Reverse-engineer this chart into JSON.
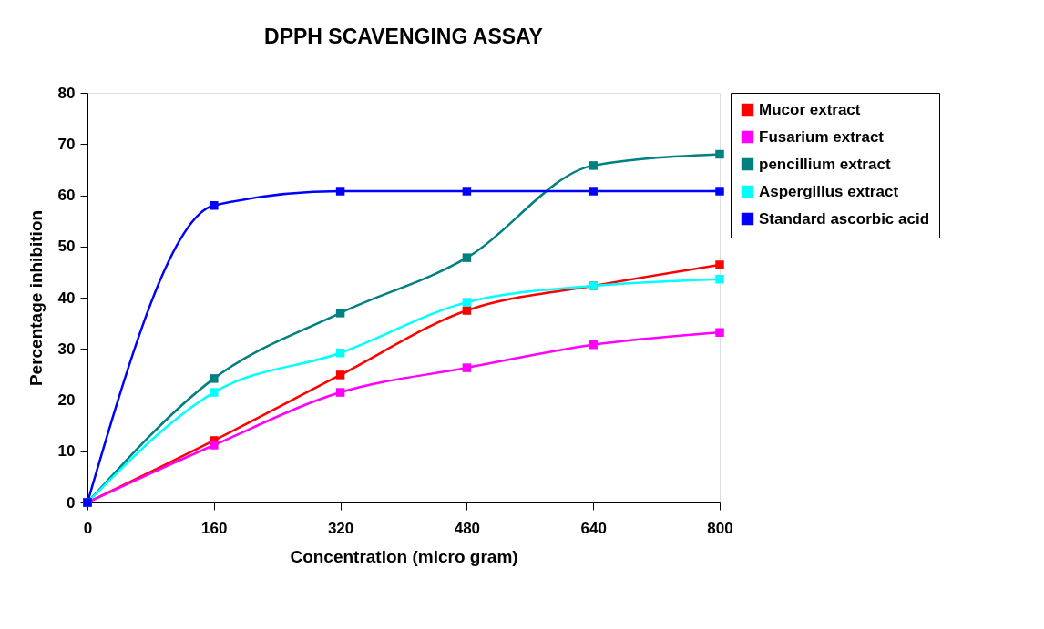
{
  "chart_data": {
    "type": "line",
    "title": "DPPH SCAVENGING ASSAY",
    "xlabel": "Concentration (micro gram)",
    "ylabel": "Percentage inhibition",
    "x": [
      0,
      160,
      320,
      480,
      640,
      800
    ],
    "xlim": [
      0,
      800
    ],
    "xticks": [
      0,
      160,
      320,
      480,
      640,
      800
    ],
    "ylim": [
      0,
      80
    ],
    "yticks": [
      0,
      10,
      20,
      30,
      40,
      50,
      60,
      70,
      80
    ],
    "grid": false,
    "legend": "right",
    "marker": "square",
    "line_style": "solid",
    "series": [
      {
        "name": "Mucor extract",
        "color": "#ff0000",
        "values": [
          0,
          12.1,
          24.9,
          37.5,
          42.3,
          46.4
        ]
      },
      {
        "name": "Fusarium extract",
        "color": "#ff00ff",
        "values": [
          0,
          11.2,
          21.5,
          26.3,
          30.8,
          33.2
        ]
      },
      {
        "name": "pencillium extract",
        "color": "#008080",
        "values": [
          0,
          24.2,
          37.0,
          47.8,
          65.8,
          68.0
        ]
      },
      {
        "name": "Aspergillus extract",
        "color": "#00ffff",
        "values": [
          0,
          21.5,
          29.2,
          39.1,
          42.3,
          43.6
        ]
      },
      {
        "name": "Standard ascorbic acid",
        "color": "#0000ff",
        "values": [
          0,
          58.0,
          60.8,
          60.8,
          60.8,
          60.8
        ]
      }
    ]
  }
}
